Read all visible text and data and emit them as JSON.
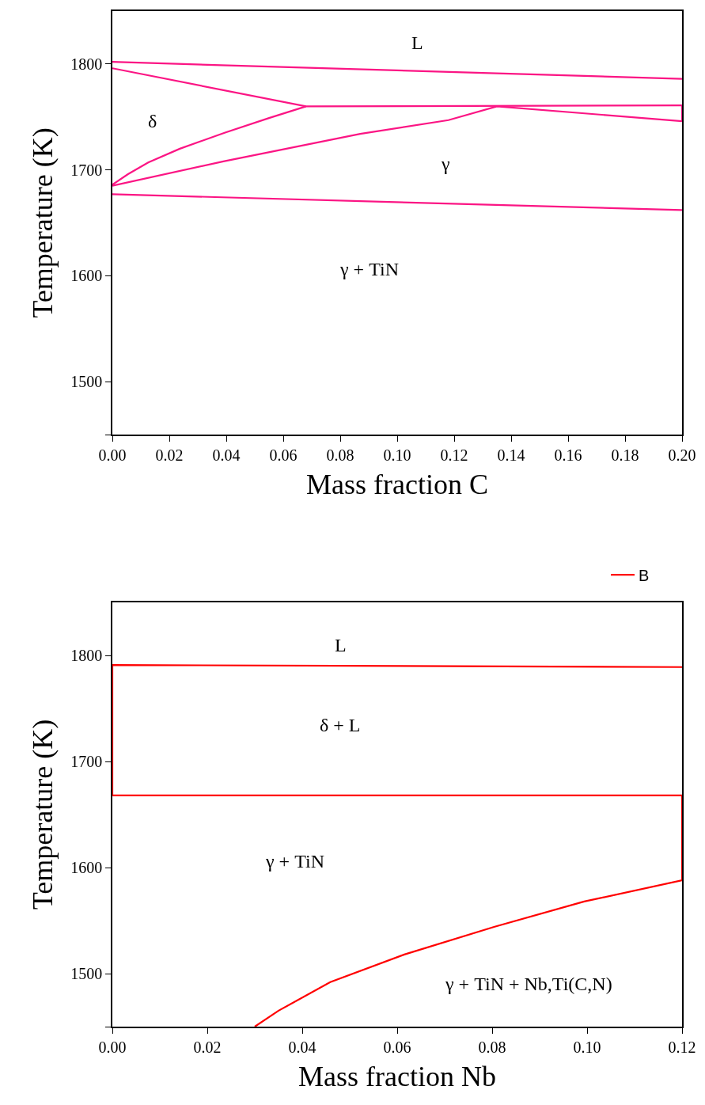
{
  "chart_data": [
    {
      "type": "line",
      "xlabel": "Mass fraction C",
      "ylabel": "Temperature (K)",
      "xlim": [
        0,
        0.2
      ],
      "ylim": [
        1450,
        1850
      ],
      "xticks": [
        {
          "value": 0,
          "label": "0.00"
        },
        {
          "value": 0.02,
          "label": "0.02"
        },
        {
          "value": 0.04,
          "label": "0.04"
        },
        {
          "value": 0.06,
          "label": "0.06"
        },
        {
          "value": 0.08,
          "label": "0.08"
        },
        {
          "value": 0.1,
          "label": "0.10"
        },
        {
          "value": 0.12,
          "label": "0.12"
        },
        {
          "value": 0.14,
          "label": "0.14"
        },
        {
          "value": 0.16,
          "label": "0.16"
        },
        {
          "value": 0.18,
          "label": "0.18"
        },
        {
          "value": 0.2,
          "label": "0.20"
        }
      ],
      "yticks": [
        {
          "value": 1450,
          "label": null
        },
        1500,
        1600,
        1700,
        1800
      ],
      "legend": false,
      "marker": "none",
      "line_style": "solid",
      "series": [
        {
          "color": "#fb1584",
          "x": [
            0,
            0.2
          ],
          "values": [
            1802,
            1786
          ]
        },
        {
          "color": "#fb1584",
          "x": [
            0,
            0.068,
            0.2
          ],
          "values": [
            1796,
            1760,
            1761
          ]
        },
        {
          "color": "#fb1584",
          "x": [
            0,
            0.0055,
            0.0126,
            0.0237,
            0.0394,
            0.055,
            0.068
          ],
          "values": [
            1686,
            1696,
            1707,
            1720,
            1735,
            1749,
            1760
          ]
        },
        {
          "color": "#fb1584",
          "x": [
            0,
            0.039,
            0.087,
            0.118,
            0.135,
            0.2
          ],
          "values": [
            1685,
            1708,
            1734,
            1747,
            1760,
            1746
          ]
        },
        {
          "color": "#fb1584",
          "x": [
            0.2,
            0.2
          ],
          "values": [
            1746,
            1761
          ]
        },
        {
          "color": "#fb1584",
          "x": [
            0,
            0.2
          ],
          "values": [
            1677,
            1662
          ]
        }
      ],
      "annotations": [
        "L",
        "δ",
        "γ",
        "γ + TiN"
      ]
    },
    {
      "type": "line",
      "xlabel": "Mass fraction Nb",
      "ylabel": "Temperature (K)",
      "xlim": [
        0,
        0.12
      ],
      "ylim": [
        1450,
        1850
      ],
      "xticks": [
        {
          "value": 0,
          "label": "0.00"
        },
        {
          "value": 0.02,
          "label": "0.02"
        },
        {
          "value": 0.04,
          "label": "0.04"
        },
        {
          "value": 0.06,
          "label": "0.06"
        },
        {
          "value": 0.08,
          "label": "0.08"
        },
        {
          "value": 0.1,
          "label": "0.10"
        },
        {
          "value": 0.12,
          "label": "0.12"
        }
      ],
      "yticks": [
        {
          "value": 1450,
          "label": null
        },
        1500,
        1600,
        1700,
        1800
      ],
      "legend": "top right",
      "marker": "none",
      "line_style": "solid",
      "series": [
        {
          "name": "B",
          "color": "#ff0000",
          "x": [
            0.03,
            0.035,
            0.0459,
            0.0615,
            0.0804,
            0.0994,
            0.12,
            0.12,
            0,
            0,
            0.12
          ],
          "values": [
            1450,
            1465,
            1492,
            1518,
            1544,
            1568,
            1588,
            1668,
            1668,
            1791,
            1789
          ]
        }
      ],
      "annotations": [
        "L",
        "δ + L",
        "γ + TiN",
        "γ + TiN + Nb,Ti(C,N)"
      ]
    }
  ]
}
